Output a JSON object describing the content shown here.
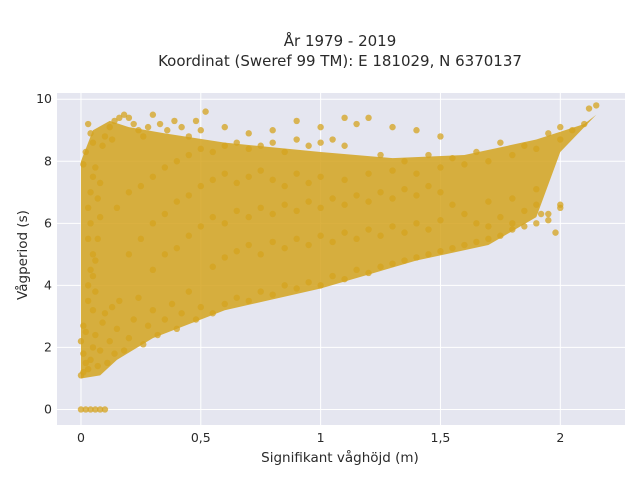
{
  "chart_data": {
    "type": "scatter",
    "title_lines": [
      "År 1979 - 2019",
      "Koordinat (Sweref 99 TM): E 181029, N 6370137"
    ],
    "xlabel": "Signifikant våghöjd (m)",
    "ylabel": "Vågperiod (s)",
    "xlim": [
      -0.1,
      2.27
    ],
    "ylim": [
      -0.5,
      10.2
    ],
    "xticks": [
      0,
      0.5,
      1,
      1.5,
      2
    ],
    "xtick_labels": [
      "0",
      "0,5",
      "1",
      "1,5",
      "2"
    ],
    "yticks": [
      0,
      2,
      4,
      6,
      8,
      10
    ],
    "ytick_labels": [
      "0",
      "2",
      "4",
      "6",
      "8",
      "10"
    ],
    "grid": true,
    "legend": "none",
    "series": [
      {
        "marker_color": "#D4A31F",
        "points": [
          [
            0.0,
            0.0
          ],
          [
            0.02,
            0.0
          ],
          [
            0.04,
            0.0
          ],
          [
            0.06,
            0.0
          ],
          [
            0.08,
            0.0
          ],
          [
            0.1,
            0.0
          ],
          [
            0.0,
            1.1
          ],
          [
            0.01,
            1.2
          ],
          [
            0.02,
            1.5
          ],
          [
            0.01,
            1.8
          ],
          [
            0.0,
            2.2
          ],
          [
            0.02,
            2.5
          ],
          [
            0.01,
            2.7
          ],
          [
            0.03,
            1.3
          ],
          [
            0.04,
            1.6
          ],
          [
            0.05,
            2.0
          ],
          [
            0.06,
            2.4
          ],
          [
            0.07,
            1.4
          ],
          [
            0.08,
            1.9
          ],
          [
            0.09,
            2.8
          ],
          [
            0.1,
            3.1
          ],
          [
            0.11,
            1.5
          ],
          [
            0.12,
            2.2
          ],
          [
            0.13,
            3.3
          ],
          [
            0.14,
            1.8
          ],
          [
            0.15,
            2.6
          ],
          [
            0.16,
            3.5
          ],
          [
            0.18,
            1.9
          ],
          [
            0.2,
            2.3
          ],
          [
            0.22,
            2.9
          ],
          [
            0.24,
            3.6
          ],
          [
            0.26,
            2.1
          ],
          [
            0.28,
            2.7
          ],
          [
            0.3,
            3.2
          ],
          [
            0.32,
            2.4
          ],
          [
            0.35,
            2.9
          ],
          [
            0.38,
            3.4
          ],
          [
            0.4,
            2.6
          ],
          [
            0.42,
            3.1
          ],
          [
            0.45,
            3.8
          ],
          [
            0.48,
            2.9
          ],
          [
            0.5,
            3.3
          ],
          [
            0.55,
            3.1
          ],
          [
            0.6,
            3.4
          ],
          [
            0.65,
            3.6
          ],
          [
            0.7,
            3.5
          ],
          [
            0.75,
            3.8
          ],
          [
            0.8,
            3.7
          ],
          [
            0.85,
            4.0
          ],
          [
            0.9,
            3.9
          ],
          [
            0.95,
            4.1
          ],
          [
            1.0,
            4.0
          ],
          [
            1.05,
            4.3
          ],
          [
            1.1,
            4.2
          ],
          [
            1.15,
            4.5
          ],
          [
            1.2,
            4.4
          ],
          [
            1.25,
            4.6
          ],
          [
            1.3,
            4.7
          ],
          [
            1.35,
            4.8
          ],
          [
            1.4,
            4.9
          ],
          [
            1.45,
            5.0
          ],
          [
            1.5,
            5.1
          ],
          [
            1.55,
            5.2
          ],
          [
            1.6,
            5.3
          ],
          [
            1.65,
            5.4
          ],
          [
            1.7,
            5.5
          ],
          [
            1.75,
            5.6
          ],
          [
            1.8,
            5.8
          ],
          [
            1.85,
            5.9
          ],
          [
            1.9,
            6.0
          ],
          [
            1.95,
            6.1
          ],
          [
            2.0,
            6.5
          ],
          [
            1.98,
            5.7
          ],
          [
            1.92,
            6.3
          ],
          [
            0.05,
            3.2
          ],
          [
            0.06,
            3.8
          ],
          [
            0.05,
            4.3
          ],
          [
            0.06,
            4.8
          ],
          [
            0.07,
            5.5
          ],
          [
            0.08,
            6.2
          ],
          [
            0.07,
            6.8
          ],
          [
            0.08,
            7.3
          ],
          [
            0.06,
            7.8
          ],
          [
            0.05,
            7.5
          ],
          [
            0.04,
            7.0
          ],
          [
            0.03,
            6.5
          ],
          [
            0.04,
            6.0
          ],
          [
            0.03,
            5.5
          ],
          [
            0.05,
            5.0
          ],
          [
            0.04,
            4.5
          ],
          [
            0.03,
            4.0
          ],
          [
            0.03,
            3.5
          ],
          [
            0.09,
            8.5
          ],
          [
            0.1,
            8.8
          ],
          [
            0.12,
            9.1
          ],
          [
            0.13,
            8.7
          ],
          [
            0.14,
            9.3
          ],
          [
            0.16,
            9.4
          ],
          [
            0.18,
            9.5
          ],
          [
            0.2,
            9.4
          ],
          [
            0.22,
            9.2
          ],
          [
            0.24,
            9.0
          ],
          [
            0.26,
            8.8
          ],
          [
            0.28,
            9.1
          ],
          [
            0.3,
            9.5
          ],
          [
            0.33,
            9.2
          ],
          [
            0.36,
            9.0
          ],
          [
            0.39,
            9.3
          ],
          [
            0.42,
            9.1
          ],
          [
            0.45,
            8.8
          ],
          [
            0.5,
            9.0
          ],
          [
            0.15,
            6.5
          ],
          [
            0.2,
            7.0
          ],
          [
            0.25,
            7.2
          ],
          [
            0.3,
            7.5
          ],
          [
            0.35,
            7.8
          ],
          [
            0.4,
            8.0
          ],
          [
            0.45,
            8.2
          ],
          [
            0.5,
            8.4
          ],
          [
            0.55,
            8.3
          ],
          [
            0.6,
            8.5
          ],
          [
            0.65,
            8.6
          ],
          [
            0.7,
            8.4
          ],
          [
            0.75,
            8.5
          ],
          [
            0.8,
            8.6
          ],
          [
            0.85,
            8.3
          ],
          [
            0.9,
            8.7
          ],
          [
            0.95,
            8.5
          ],
          [
            1.0,
            8.6
          ],
          [
            1.05,
            8.7
          ],
          [
            1.1,
            8.5
          ],
          [
            0.2,
            5.0
          ],
          [
            0.25,
            5.5
          ],
          [
            0.3,
            6.0
          ],
          [
            0.35,
            6.3
          ],
          [
            0.4,
            6.7
          ],
          [
            0.45,
            6.9
          ],
          [
            0.5,
            7.2
          ],
          [
            0.55,
            7.4
          ],
          [
            0.6,
            7.6
          ],
          [
            0.65,
            7.3
          ],
          [
            0.7,
            7.5
          ],
          [
            0.75,
            7.7
          ],
          [
            0.8,
            7.4
          ],
          [
            0.85,
            7.2
          ],
          [
            0.9,
            7.6
          ],
          [
            0.95,
            7.3
          ],
          [
            1.0,
            7.5
          ],
          [
            1.1,
            7.4
          ],
          [
            1.2,
            7.6
          ],
          [
            1.3,
            7.7
          ],
          [
            1.4,
            7.6
          ],
          [
            1.5,
            7.8
          ],
          [
            1.6,
            7.9
          ],
          [
            1.7,
            8.0
          ],
          [
            1.8,
            8.2
          ],
          [
            1.9,
            8.4
          ],
          [
            2.0,
            8.7
          ],
          [
            2.05,
            9.0
          ],
          [
            2.1,
            9.2
          ],
          [
            2.15,
            9.8
          ],
          [
            2.12,
            9.7
          ],
          [
            2.0,
            9.1
          ],
          [
            1.95,
            8.9
          ],
          [
            1.85,
            8.5
          ],
          [
            1.75,
            8.6
          ],
          [
            1.65,
            8.3
          ],
          [
            1.55,
            8.1
          ],
          [
            1.45,
            8.2
          ],
          [
            1.35,
            8.0
          ],
          [
            1.25,
            8.2
          ],
          [
            0.3,
            4.5
          ],
          [
            0.35,
            5.0
          ],
          [
            0.4,
            5.2
          ],
          [
            0.45,
            5.6
          ],
          [
            0.5,
            5.9
          ],
          [
            0.55,
            6.2
          ],
          [
            0.6,
            6.0
          ],
          [
            0.65,
            6.4
          ],
          [
            0.7,
            6.2
          ],
          [
            0.75,
            6.5
          ],
          [
            0.8,
            6.3
          ],
          [
            0.85,
            6.6
          ],
          [
            0.9,
            6.4
          ],
          [
            0.95,
            6.7
          ],
          [
            1.0,
            6.5
          ],
          [
            1.05,
            6.8
          ],
          [
            1.1,
            6.6
          ],
          [
            1.15,
            6.9
          ],
          [
            1.2,
            6.7
          ],
          [
            1.25,
            7.0
          ],
          [
            1.3,
            6.8
          ],
          [
            1.35,
            7.1
          ],
          [
            1.4,
            6.9
          ],
          [
            1.45,
            7.2
          ],
          [
            1.5,
            7.0
          ],
          [
            1.55,
            6.6
          ],
          [
            1.6,
            6.3
          ],
          [
            1.65,
            6.0
          ],
          [
            1.7,
            5.9
          ],
          [
            1.75,
            6.2
          ],
          [
            1.8,
            6.0
          ],
          [
            1.85,
            6.4
          ],
          [
            1.9,
            6.6
          ],
          [
            1.95,
            6.3
          ],
          [
            2.0,
            6.6
          ],
          [
            1.7,
            6.7
          ],
          [
            1.8,
            6.8
          ],
          [
            1.9,
            7.1
          ],
          [
            0.55,
            4.6
          ],
          [
            0.6,
            4.9
          ],
          [
            0.65,
            5.1
          ],
          [
            0.7,
            5.3
          ],
          [
            0.75,
            5.0
          ],
          [
            0.8,
            5.4
          ],
          [
            0.85,
            5.2
          ],
          [
            0.9,
            5.5
          ],
          [
            0.95,
            5.3
          ],
          [
            1.0,
            5.6
          ],
          [
            1.05,
            5.4
          ],
          [
            1.1,
            5.7
          ],
          [
            1.15,
            5.5
          ],
          [
            1.2,
            5.8
          ],
          [
            1.25,
            5.6
          ],
          [
            1.3,
            5.9
          ],
          [
            1.35,
            5.7
          ],
          [
            1.4,
            6.0
          ],
          [
            1.45,
            5.8
          ],
          [
            1.5,
            6.1
          ],
          [
            0.9,
            9.3
          ],
          [
            1.0,
            9.1
          ],
          [
            1.1,
            9.4
          ],
          [
            1.15,
            9.2
          ],
          [
            1.2,
            9.4
          ],
          [
            1.3,
            9.1
          ],
          [
            1.4,
            9.0
          ],
          [
            1.5,
            8.8
          ],
          [
            0.6,
            9.1
          ],
          [
            0.7,
            8.9
          ],
          [
            0.8,
            9.0
          ],
          [
            0.52,
            9.6
          ],
          [
            0.48,
            9.3
          ],
          [
            0.03,
            9.2
          ],
          [
            0.04,
            8.9
          ],
          [
            0.05,
            8.6
          ],
          [
            0.02,
            8.3
          ],
          [
            0.01,
            7.9
          ]
        ]
      }
    ]
  }
}
